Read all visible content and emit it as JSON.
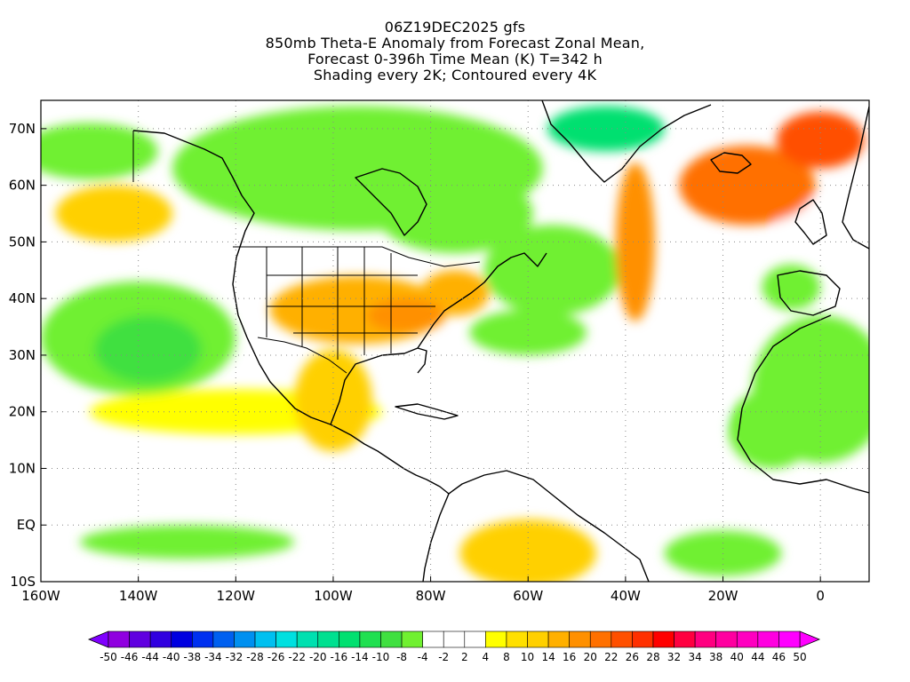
{
  "title": {
    "line1": "06Z19DEC2025 gfs",
    "line2": "850mb Theta-E Anomaly from Forecast Zonal Mean,",
    "line3": "Forecast 0-396h Time Mean (K) T=342 h",
    "line4": "Shading every 2K; Contoured every 4K"
  },
  "map": {
    "lon_range": [
      -160,
      10
    ],
    "lat_range": [
      -10,
      75
    ],
    "x_ticks": [
      {
        "lon": -160,
        "label": "160W"
      },
      {
        "lon": -140,
        "label": "140W"
      },
      {
        "lon": -120,
        "label": "120W"
      },
      {
        "lon": -100,
        "label": "100W"
      },
      {
        "lon": -80,
        "label": "80W"
      },
      {
        "lon": -60,
        "label": "60W"
      },
      {
        "lon": -40,
        "label": "40W"
      },
      {
        "lon": -20,
        "label": "20W"
      },
      {
        "lon": 0,
        "label": "0"
      }
    ],
    "y_ticks": [
      {
        "lat": 70,
        "label": "70N"
      },
      {
        "lat": 60,
        "label": "60N"
      },
      {
        "lat": 50,
        "label": "50N"
      },
      {
        "lat": 40,
        "label": "40N"
      },
      {
        "lat": 30,
        "label": "30N"
      },
      {
        "lat": 20,
        "label": "20N"
      },
      {
        "lat": 10,
        "label": "10N"
      },
      {
        "lat": 0,
        "label": "EQ"
      },
      {
        "lat": -10,
        "label": "10S"
      }
    ],
    "grid": true,
    "anomaly_regions": [
      {
        "name": "greenland-low",
        "lon": -44,
        "lat": 70,
        "rx": 12,
        "ry": 4,
        "value": -16
      },
      {
        "name": "canada-arctic-neg",
        "lon": -95,
        "lat": 63,
        "rx": 38,
        "ry": 11,
        "value": -6
      },
      {
        "name": "hudson-neg",
        "lon": -75,
        "lat": 55,
        "rx": 16,
        "ry": 7,
        "value": -8
      },
      {
        "name": "north-atlantic-neg",
        "lon": -55,
        "lat": 45,
        "rx": 14,
        "ry": 8,
        "value": -8
      },
      {
        "name": "subtrop-atlantic-neg",
        "lon": -60,
        "lat": 34,
        "rx": 12,
        "ry": 4,
        "value": -8
      },
      {
        "name": "pacific-neg",
        "lon": -140,
        "lat": 33,
        "rx": 20,
        "ry": 10,
        "value": -8
      },
      {
        "name": "pacific-neg-core",
        "lon": -138,
        "lat": 31,
        "rx": 11,
        "ry": 6,
        "value": -10
      },
      {
        "name": "alaska-neg",
        "lon": -150,
        "lat": 66,
        "rx": 14,
        "ry": 5,
        "value": -6
      },
      {
        "name": "north-africa-neg",
        "lon": 0,
        "lat": 24,
        "rx": 14,
        "ry": 13,
        "value": -8
      },
      {
        "name": "west-africa-neg",
        "lon": -10,
        "lat": 17,
        "rx": 9,
        "ry": 7,
        "value": -6
      },
      {
        "name": "iberia-neg",
        "lon": -6,
        "lat": 42,
        "rx": 6,
        "ry": 4,
        "value": -6
      },
      {
        "name": "uk-neg",
        "lon": -4,
        "lat": 54,
        "rx": 5,
        "ry": 4,
        "value": -4
      },
      {
        "name": "eq-atlantic-neg",
        "lon": -20,
        "lat": -5,
        "rx": 12,
        "ry": 4,
        "value": -6
      },
      {
        "name": "eq-pacific-neg",
        "lon": -130,
        "lat": -3,
        "rx": 22,
        "ry": 3,
        "value": -6
      },
      {
        "name": "tropical-atlantic-neg",
        "lon": -30,
        "lat": 20,
        "rx": 10,
        "ry": 6,
        "value": -4
      },
      {
        "name": "gulf-alaska-pos",
        "lon": -145,
        "lat": 55,
        "rx": 12,
        "ry": 5,
        "value": 10
      },
      {
        "name": "us-central-pos",
        "lon": -95,
        "lat": 38,
        "rx": 18,
        "ry": 6,
        "value": 14
      },
      {
        "name": "us-southeast-pos",
        "lon": -85,
        "lat": 37,
        "rx": 8,
        "ry": 3,
        "value": 16
      },
      {
        "name": "us-northeast-pos",
        "lon": -75,
        "lat": 41,
        "rx": 7,
        "ry": 4,
        "value": 14
      },
      {
        "name": "mexico-pos",
        "lon": -100,
        "lat": 22,
        "rx": 8,
        "ry": 9,
        "value": 10
      },
      {
        "name": "atlantic-plume-pos",
        "lon": -38,
        "lat": 50,
        "rx": 4,
        "ry": 14,
        "value": 16
      },
      {
        "name": "iceland-plume-pos",
        "lon": -15,
        "lat": 60,
        "rx": 14,
        "ry": 7,
        "value": 20
      },
      {
        "name": "norway-sea-pos",
        "lon": 0,
        "lat": 68,
        "rx": 9,
        "ry": 5,
        "value": 22
      },
      {
        "name": "south-america-pos",
        "lon": -60,
        "lat": -5,
        "rx": 14,
        "ry": 6,
        "value": 10
      },
      {
        "name": "pacific-subtrop-pos",
        "lon": -120,
        "lat": 20,
        "rx": 30,
        "ry": 4,
        "value": 6
      }
    ]
  },
  "colorbar": {
    "min_color": "#8000ff",
    "max_color": "#ff00ff",
    "bins": [
      {
        "color": "#9000e0"
      },
      {
        "color": "#6000e0"
      },
      {
        "color": "#3000e0"
      },
      {
        "color": "#0000e0"
      },
      {
        "color": "#0030f0"
      },
      {
        "color": "#0060f0"
      },
      {
        "color": "#0090f0"
      },
      {
        "color": "#00c0f0"
      },
      {
        "color": "#00e0e0"
      },
      {
        "color": "#00e0b0"
      },
      {
        "color": "#00e090"
      },
      {
        "color": "#00e070"
      },
      {
        "color": "#20e050"
      },
      {
        "color": "#40e040"
      },
      {
        "color": "#70f030"
      },
      {
        "color": "#ffffff"
      },
      {
        "color": "#ffffff"
      },
      {
        "color": "#ffffff"
      },
      {
        "color": "#ffff00"
      },
      {
        "color": "#ffe000"
      },
      {
        "color": "#ffd000"
      },
      {
        "color": "#ffb000"
      },
      {
        "color": "#ff9000"
      },
      {
        "color": "#ff7000"
      },
      {
        "color": "#ff5000"
      },
      {
        "color": "#ff3000"
      },
      {
        "color": "#ff0000"
      },
      {
        "color": "#ff0040"
      },
      {
        "color": "#ff0080"
      },
      {
        "color": "#ff00a0"
      },
      {
        "color": "#ff00c0"
      },
      {
        "color": "#ff00e0"
      },
      {
        "color": "#ff00ff"
      }
    ],
    "labels": [
      "-50",
      "-46",
      "-44",
      "-40",
      "-38",
      "-34",
      "-32",
      "-28",
      "-26",
      "-22",
      "-20",
      "-16",
      "-14",
      "-10",
      "-8",
      "-4",
      "-2",
      "2",
      "4",
      "8",
      "10",
      "14",
      "16",
      "20",
      "22",
      "26",
      "28",
      "32",
      "34",
      "38",
      "40",
      "44",
      "46",
      "50"
    ]
  }
}
